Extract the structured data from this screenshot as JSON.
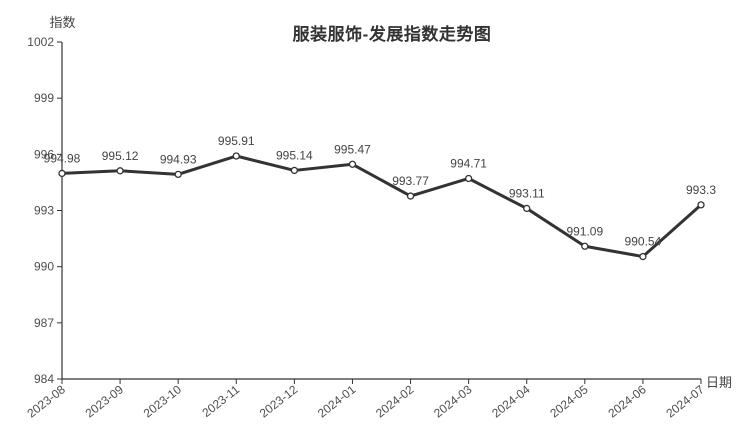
{
  "chart_data": {
    "type": "line",
    "title": "服装服饰-发展指数走势图",
    "ylabel": "指数",
    "xlabel": "日期",
    "categories": [
      "2023-08",
      "2023-09",
      "2023-10",
      "2023-11",
      "2023-12",
      "2024-01",
      "2024-02",
      "2024-03",
      "2024-04",
      "2024-05",
      "2024-06",
      "2024-07"
    ],
    "values": [
      994.98,
      995.12,
      994.93,
      995.91,
      995.14,
      995.47,
      993.77,
      994.71,
      993.11,
      991.09,
      990.54,
      993.3
    ],
    "ylim": [
      984,
      1002
    ],
    "yticks": [
      984,
      987,
      990,
      993,
      996,
      999,
      1002
    ],
    "grid": false,
    "legend": false,
    "x_label_rotation": -38,
    "line_color": "#333333",
    "marker_fill": "#ffffff",
    "axis_color": "#333333",
    "tick_text_color": "#4d4d4d",
    "data_label_color": "#444444",
    "title_color": "#333333"
  }
}
